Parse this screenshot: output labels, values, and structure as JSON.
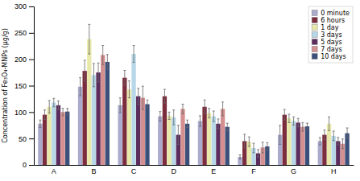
{
  "chart_data": {
    "type": "bar",
    "ylabel": "Concentration of Fe₃O₄-MNPs (μg/g)",
    "categories": [
      "A",
      "B",
      "C",
      "D",
      "E",
      "F",
      "G",
      "H"
    ],
    "series": [
      {
        "name": "0 minute",
        "color": "#aaaacc",
        "values": [
          78,
          148,
          113,
          92,
          83,
          15,
          57,
          45
        ],
        "errors": [
          7,
          17,
          14,
          9,
          10,
          4,
          18,
          7
        ]
      },
      {
        "name": "6 hours",
        "color": "#7b2d3e",
        "values": [
          95,
          178,
          165,
          130,
          110,
          45,
          95,
          57
        ],
        "errors": [
          9,
          20,
          14,
          13,
          13,
          13,
          10,
          9
        ]
      },
      {
        "name": "1 day",
        "color": "#e8e8aa",
        "values": [
          110,
          238,
          143,
          93,
          98,
          44,
          88,
          78
        ],
        "errors": [
          12,
          28,
          16,
          7,
          9,
          9,
          8,
          13
        ]
      },
      {
        "name": "3 days",
        "color": "#b8d8e8",
        "values": [
          118,
          170,
          210,
          90,
          92,
          32,
          83,
          55
        ],
        "errors": [
          8,
          22,
          16,
          14,
          10,
          9,
          8,
          9
        ]
      },
      {
        "name": "5 days",
        "color": "#5c2d5c",
        "values": [
          113,
          175,
          130,
          57,
          78,
          22,
          80,
          45
        ],
        "errors": [
          8,
          18,
          15,
          18,
          9,
          7,
          8,
          7
        ]
      },
      {
        "name": "7 days",
        "color": "#d49090",
        "values": [
          100,
          208,
          127,
          106,
          106,
          33,
          72,
          40
        ],
        "errors": [
          7,
          18,
          22,
          9,
          13,
          10,
          8,
          9
        ]
      },
      {
        "name": "10 days",
        "color": "#3a4f7a",
        "values": [
          101,
          195,
          115,
          78,
          72,
          35,
          73,
          60
        ],
        "errors": [
          6,
          14,
          8,
          7,
          7,
          7,
          6,
          10
        ]
      }
    ],
    "ylim": [
      0,
      300
    ],
    "yticks": [
      0,
      50,
      100,
      150,
      200,
      250,
      300
    ],
    "legend": "upper right"
  }
}
